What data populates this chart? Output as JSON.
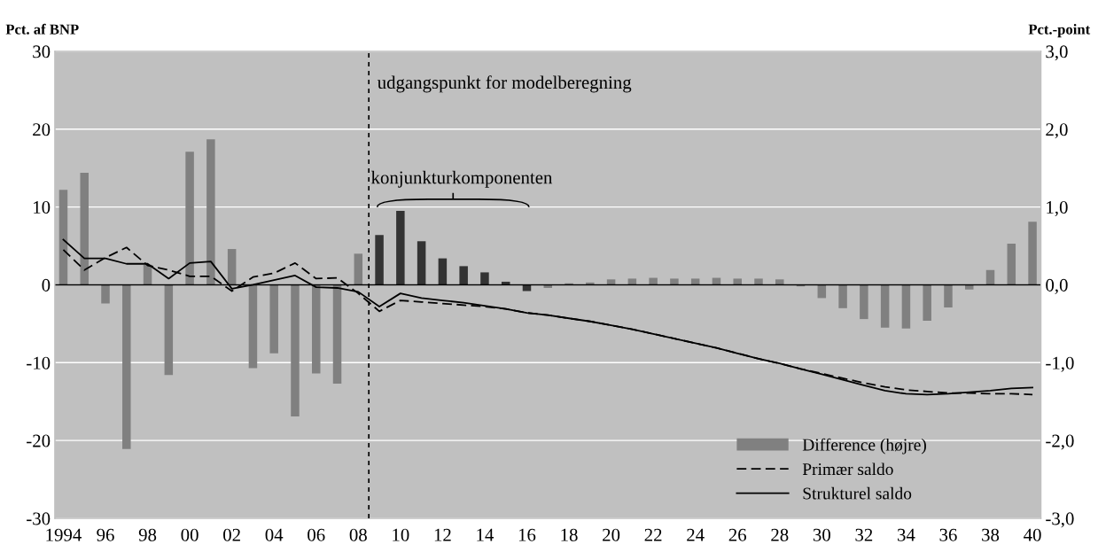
{
  "chart_data": {
    "type": "bar",
    "ylabel": "Pct. af BNP",
    "y2label": "Pct.-point",
    "x": [
      1994,
      1995,
      1996,
      1997,
      1998,
      1999,
      2000,
      2001,
      2002,
      2003,
      2004,
      2005,
      2006,
      2007,
      2008,
      2009,
      2010,
      2011,
      2012,
      2013,
      2014,
      2015,
      2016,
      2017,
      2018,
      2019,
      2020,
      2021,
      2022,
      2023,
      2024,
      2025,
      2026,
      2027,
      2028,
      2029,
      2030,
      2031,
      2032,
      2033,
      2034,
      2035,
      2036,
      2037,
      2038,
      2039,
      2040
    ],
    "xlim": [
      1993.6,
      2040.4
    ],
    "xticks": [
      {
        "value": 1994,
        "label": "1994"
      },
      {
        "value": 1996,
        "label": "96"
      },
      {
        "value": 1998,
        "label": "98"
      },
      {
        "value": 2000,
        "label": "00"
      },
      {
        "value": 2002,
        "label": "02"
      },
      {
        "value": 2004,
        "label": "04"
      },
      {
        "value": 2006,
        "label": "06"
      },
      {
        "value": 2008,
        "label": "08"
      },
      {
        "value": 2010,
        "label": "10"
      },
      {
        "value": 2012,
        "label": "12"
      },
      {
        "value": 2014,
        "label": "14"
      },
      {
        "value": 2016,
        "label": "16"
      },
      {
        "value": 2018,
        "label": "18"
      },
      {
        "value": 2020,
        "label": "20"
      },
      {
        "value": 2022,
        "label": "22"
      },
      {
        "value": 2024,
        "label": "24"
      },
      {
        "value": 2026,
        "label": "26"
      },
      {
        "value": 2028,
        "label": "28"
      },
      {
        "value": 2030,
        "label": "30"
      },
      {
        "value": 2032,
        "label": "32"
      },
      {
        "value": 2034,
        "label": "34"
      },
      {
        "value": 2036,
        "label": "36"
      },
      {
        "value": 2038,
        "label": "38"
      },
      {
        "value": 2040,
        "label": "40"
      }
    ],
    "ylim": [
      -30,
      30
    ],
    "yticks": [
      -30,
      -20,
      -10,
      0,
      10,
      20,
      30
    ],
    "y2lim": [
      -3,
      3
    ],
    "y2ticks": [
      {
        "value": -3,
        "label": "-3,0"
      },
      {
        "value": -2,
        "label": "-2,0"
      },
      {
        "value": -1,
        "label": "-1,0"
      },
      {
        "value": 0,
        "label": "0,0"
      },
      {
        "value": 1,
        "label": "1,0"
      },
      {
        "value": 2,
        "label": "2,0"
      },
      {
        "value": 3,
        "label": "3,0"
      }
    ],
    "grid": "y",
    "legend": "bottom right",
    "series": [
      {
        "name": "Difference (højre)",
        "axis": "y2",
        "color": "#808080",
        "colors": [
          "#808080",
          "#808080",
          "#808080",
          "#808080",
          "#808080",
          "#808080",
          "#808080",
          "#808080",
          "#808080",
          "#808080",
          "#808080",
          "#808080",
          "#808080",
          "#808080",
          "#808080",
          "#333333",
          "#333333",
          "#333333",
          "#333333",
          "#333333",
          "#333333",
          "#333333",
          "#333333",
          "#808080",
          "#808080",
          "#808080",
          "#808080",
          "#808080",
          "#808080",
          "#808080",
          "#808080",
          "#808080",
          "#808080",
          "#808080",
          "#808080",
          "#808080",
          "#808080",
          "#808080",
          "#808080",
          "#808080",
          "#808080",
          "#808080",
          "#808080",
          "#808080",
          "#808080",
          "#808080",
          "#808080"
        ],
        "values": [
          1.22,
          1.44,
          -0.24,
          -2.11,
          0.26,
          -1.16,
          1.71,
          1.87,
          0.46,
          -1.07,
          -0.88,
          -1.69,
          -1.14,
          -1.27,
          0.4,
          0.64,
          0.95,
          0.56,
          0.34,
          0.24,
          0.16,
          0.04,
          -0.08,
          -0.04,
          0.02,
          0.03,
          0.07,
          0.08,
          0.09,
          0.08,
          0.08,
          0.09,
          0.08,
          0.08,
          0.07,
          -0.02,
          -0.17,
          -0.3,
          -0.44,
          -0.55,
          -0.56,
          -0.46,
          -0.29,
          -0.06,
          0.19,
          0.53,
          0.81
        ]
      },
      {
        "name": "Primær saldo",
        "type": "line",
        "color": "#000000",
        "line_style": "dashed",
        "values": [
          4.5,
          1.9,
          3.5,
          4.8,
          2.5,
          1.9,
          1.1,
          1.1,
          -0.8,
          1.0,
          1.5,
          2.8,
          0.8,
          0.9,
          -1.1,
          -3.4,
          -2.0,
          -2.2,
          -2.4,
          -2.6,
          -2.8,
          -3.1,
          -3.6,
          -3.9,
          -4.3,
          -4.7,
          -5.2,
          -5.7,
          -6.3,
          -6.9,
          -7.5,
          -8.1,
          -8.8,
          -9.5,
          -10.1,
          -10.8,
          -11.4,
          -12.0,
          -12.6,
          -13.1,
          -13.5,
          -13.7,
          -13.9,
          -13.9,
          -14.0,
          -14.0,
          -14.1
        ]
      },
      {
        "name": "Strukturel saldo",
        "type": "line",
        "color": "#000000",
        "line_style": "solid",
        "values": [
          5.8,
          3.4,
          3.4,
          2.7,
          2.7,
          0.8,
          2.8,
          3.0,
          -0.5,
          0.0,
          0.6,
          1.2,
          -0.3,
          -0.4,
          -0.9,
          -2.8,
          -1.1,
          -1.7,
          -2.0,
          -2.3,
          -2.7,
          -3.1,
          -3.6,
          -3.9,
          -4.3,
          -4.7,
          -5.2,
          -5.7,
          -6.3,
          -6.9,
          -7.5,
          -8.1,
          -8.8,
          -9.5,
          -10.1,
          -10.8,
          -11.5,
          -12.2,
          -12.9,
          -13.6,
          -14.0,
          -14.1,
          -14.0,
          -13.8,
          -13.6,
          -13.3,
          -13.2
        ]
      }
    ],
    "ref_lines": [
      {
        "axis": "y",
        "value": 0,
        "color": "#000000",
        "line_style": "solid"
      },
      {
        "axis": "x",
        "value": 2008.5,
        "label": "udgangspunkt for modelberegning",
        "color": "#000000",
        "line_style": "dashed"
      }
    ],
    "annotations": [
      "konjunkturkomponenten"
    ]
  }
}
